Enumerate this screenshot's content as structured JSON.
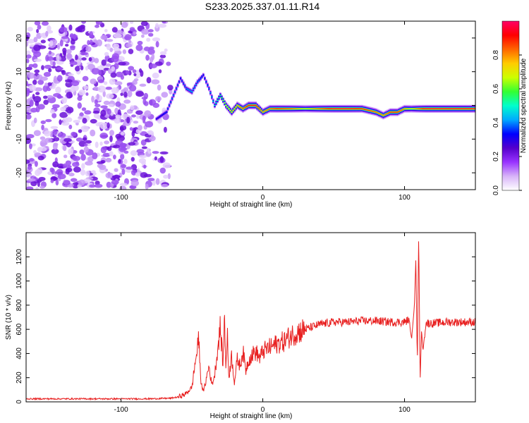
{
  "title": "S233.2025.337.01.11.R14",
  "chart_data": [
    {
      "type": "heatmap",
      "title": "S233.2025.337.01.11.R14",
      "xlabel": "Height of straight line (km)",
      "ylabel": "Frequency (Hz)",
      "xlim": [
        -167,
        150
      ],
      "ylim": [
        -25,
        25
      ],
      "xticks": [
        -100,
        0,
        100
      ],
      "yticks": [
        -20,
        -10,
        0,
        10,
        20
      ],
      "colorbar": {
        "label": "Normalized spectral amplitude",
        "range": [
          0.0,
          1.0
        ],
        "ticks": [
          0.0,
          0.2,
          0.4,
          0.6,
          0.8
        ],
        "colors": [
          "#ffffff",
          "#d8b4f8",
          "#9933ff",
          "#5500cc",
          "#0000ff",
          "#00aaff",
          "#00ffcc",
          "#33ff33",
          "#ccff00",
          "#ffcc00",
          "#ff6600",
          "#ff0000",
          "#ff0066"
        ]
      },
      "noise_region": {
        "x_start": -167,
        "x_end": -70,
        "freq_range": [
          -25,
          25
        ],
        "typical_amplitude": 0.1
      },
      "ridge": {
        "x": [
          -75,
          -68,
          -63,
          -58,
          -54,
          -50,
          -46,
          -42,
          -38,
          -34,
          -30,
          -26,
          -22,
          -18,
          -14,
          -10,
          -5,
          0,
          5,
          10,
          20,
          30,
          40,
          50,
          60,
          70,
          80,
          85,
          90,
          95,
          100,
          105,
          110,
          115,
          120,
          130,
          140,
          150
        ],
        "freq": [
          -4,
          -2,
          3,
          8,
          5,
          4,
          7,
          9,
          5,
          0,
          3,
          0,
          -2,
          0,
          -1,
          0,
          0,
          -2,
          -1,
          -1,
          -1,
          -1,
          -1,
          -1,
          -1,
          -1,
          -2,
          -3,
          -2,
          -2,
          -1,
          -1,
          -1,
          -1,
          -1,
          -1,
          -1,
          -1
        ],
        "amplitude": [
          0.3,
          0.35,
          0.4,
          0.35,
          0.4,
          0.45,
          0.4,
          0.35,
          0.4,
          0.5,
          0.55,
          0.7,
          0.75,
          0.8,
          0.85,
          0.95,
          0.95,
          0.8,
          0.85,
          0.9,
          0.85,
          0.7,
          0.85,
          0.95,
          0.95,
          0.9,
          0.85,
          0.8,
          0.9,
          0.9,
          0.8,
          0.7,
          0.85,
          0.95,
          0.95,
          0.95,
          0.95,
          0.95
        ]
      }
    },
    {
      "type": "line",
      "xlabel": "Height of straight line (km)",
      "ylabel": "SNR (10 * v/v)",
      "xlim": [
        -167,
        150
      ],
      "ylim": [
        0,
        1400
      ],
      "xticks": [
        -100,
        0,
        100
      ],
      "yticks": [
        0,
        200,
        400,
        600,
        800,
        1000,
        1200
      ],
      "line_color": "#e82020",
      "series": [
        {
          "name": "SNR",
          "x": [
            -167,
            -150,
            -120,
            -100,
            -80,
            -65,
            -60,
            -55,
            -50,
            -48,
            -46,
            -45,
            -44,
            -42,
            -40,
            -38,
            -36,
            -34,
            -32,
            -30,
            -28,
            -27,
            -26,
            -25,
            -24,
            -22,
            -20,
            -18,
            -16,
            -14,
            -12,
            -10,
            -8,
            -6,
            -4,
            -2,
            0,
            5,
            10,
            15,
            20,
            25,
            30,
            40,
            50,
            60,
            70,
            80,
            90,
            100,
            103,
            105,
            107,
            108,
            109,
            110,
            111,
            112,
            113,
            115,
            120,
            130,
            140,
            150
          ],
          "y": [
            25,
            25,
            25,
            25,
            25,
            30,
            40,
            60,
            120,
            300,
            450,
            530,
            200,
            80,
            180,
            300,
            140,
            220,
            420,
            620,
            300,
            730,
            280,
            550,
            200,
            380,
            160,
            350,
            300,
            420,
            260,
            350,
            380,
            410,
            400,
            360,
            420,
            450,
            480,
            500,
            550,
            580,
            600,
            640,
            660,
            660,
            670,
            670,
            660,
            660,
            680,
            520,
            800,
            1200,
            300,
            1390,
            160,
            600,
            420,
            650,
            650,
            660,
            660,
            660
          ]
        }
      ]
    }
  ]
}
